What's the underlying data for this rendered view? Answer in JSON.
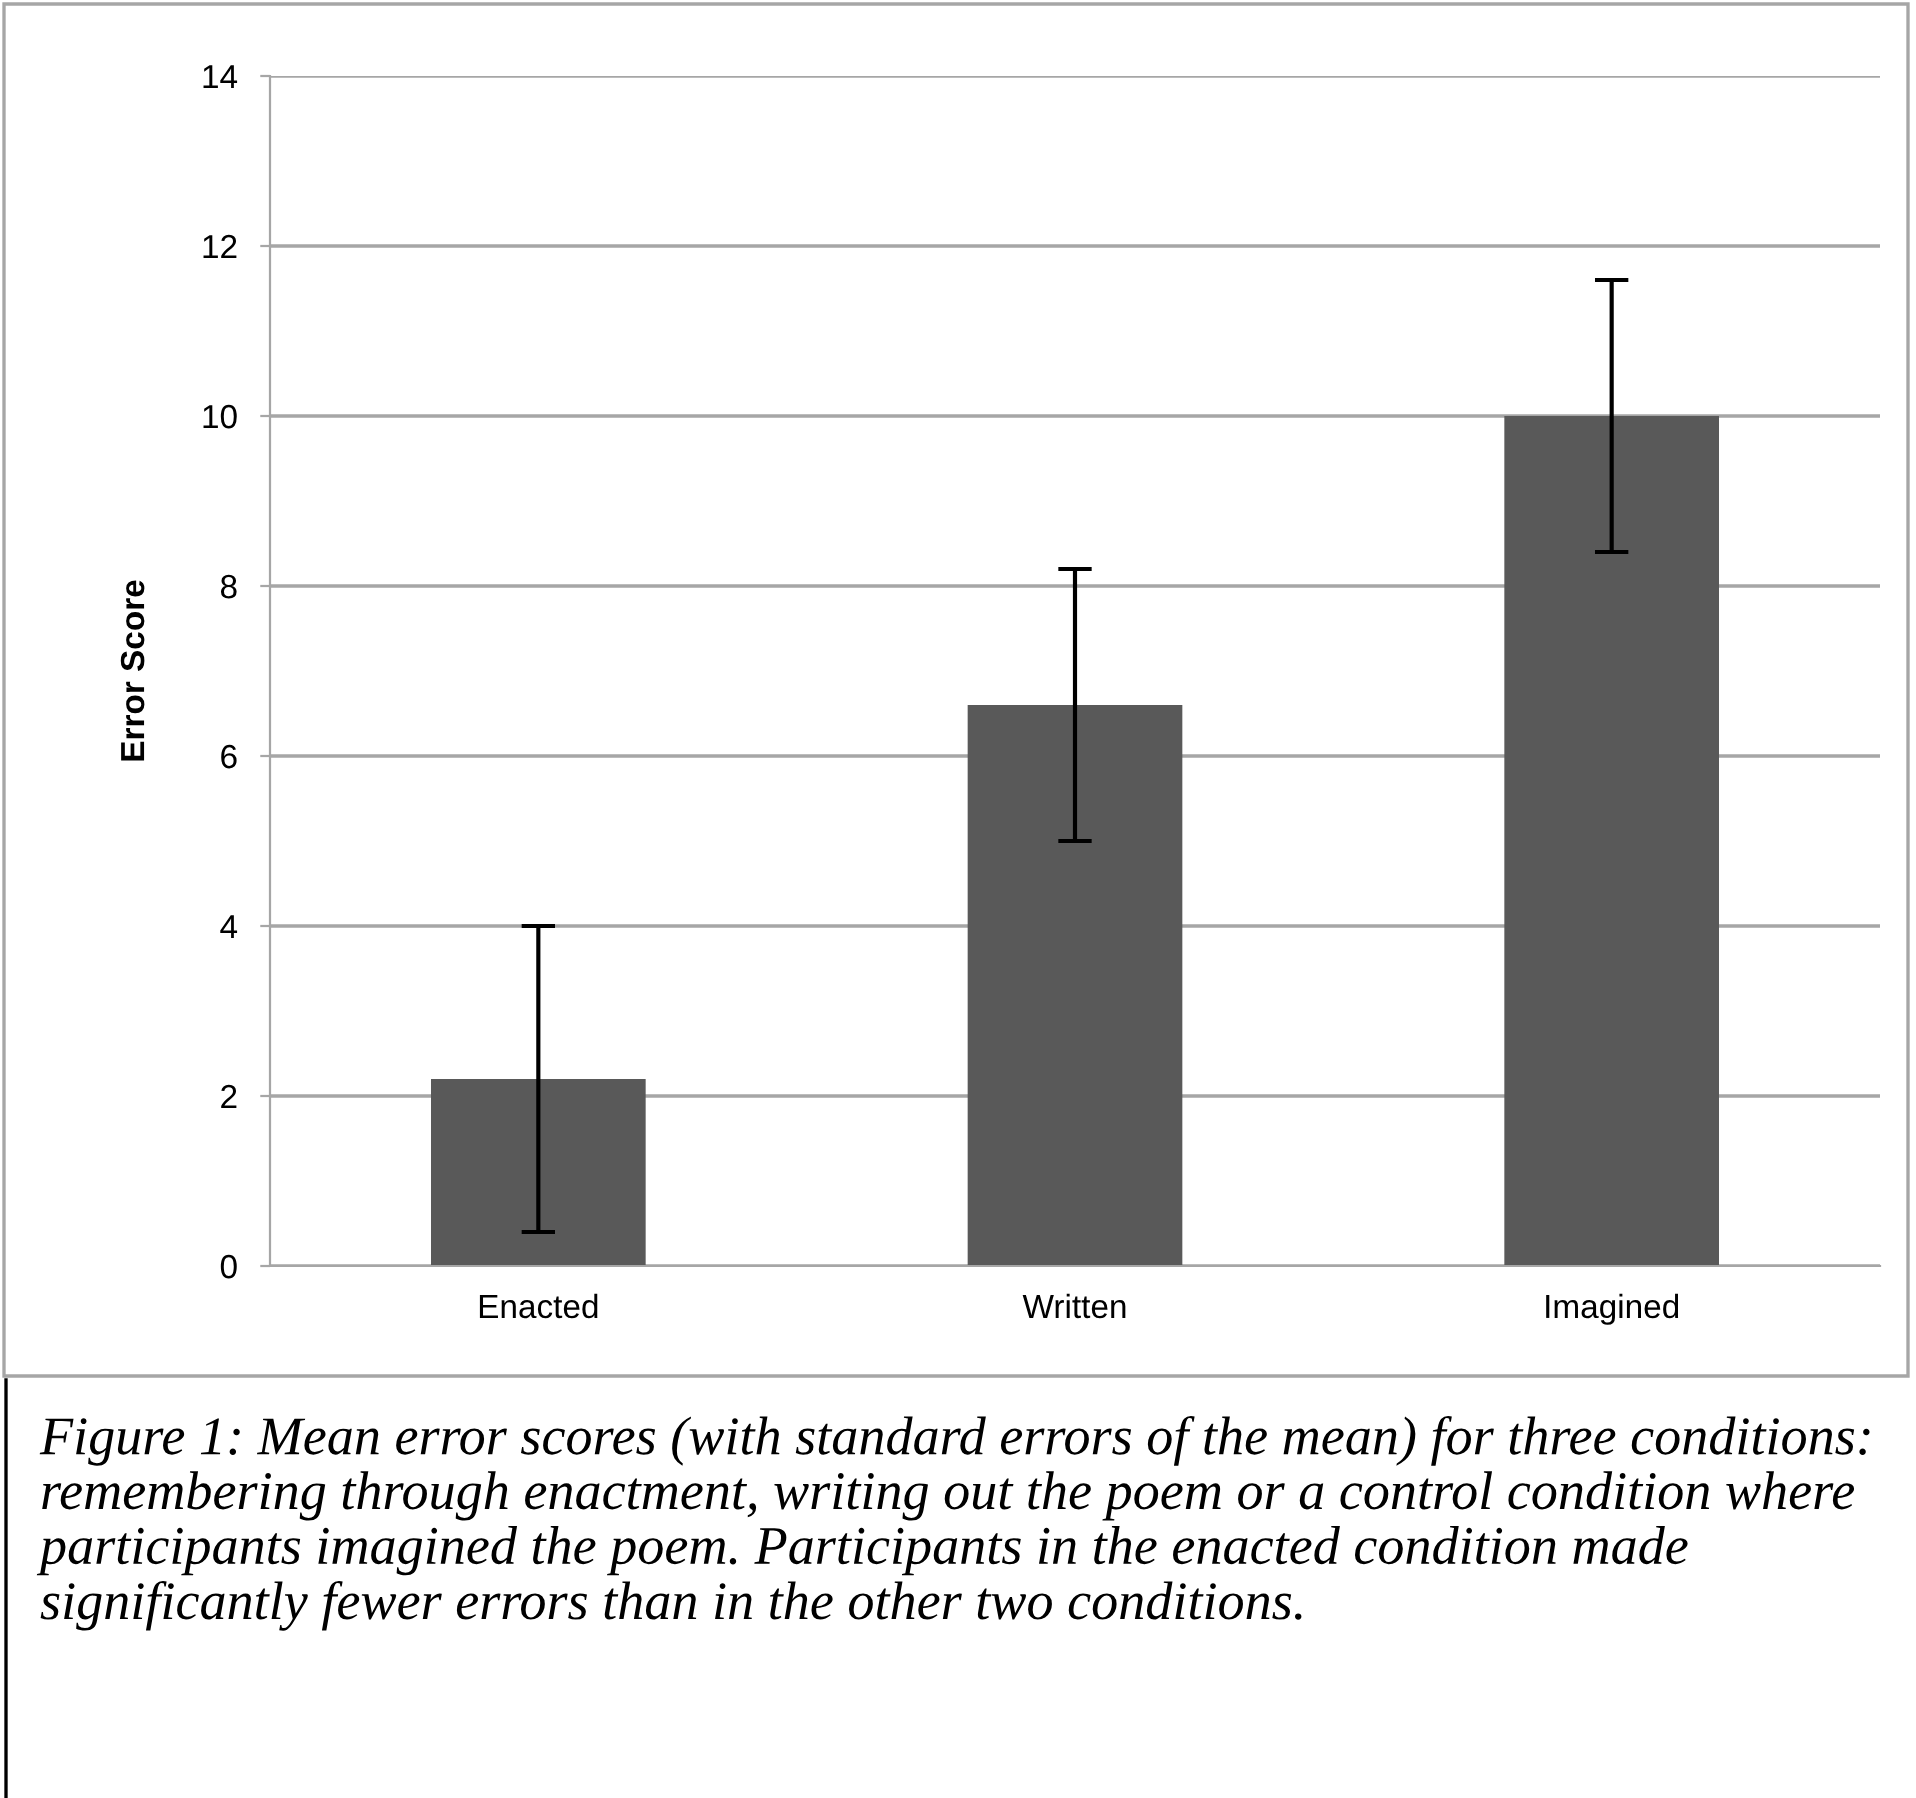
{
  "chart_data": {
    "type": "bar",
    "ylabel": "Error Score",
    "categories": [
      "Enacted",
      "Written",
      "Imagined"
    ],
    "values": [
      2.2,
      6.6,
      10
    ],
    "errors": [
      1.8,
      1.6,
      1.6
    ],
    "color": "#595959",
    "ylim": [
      0,
      14
    ],
    "yticks": [
      0,
      2,
      4,
      6,
      8,
      10,
      12,
      14
    ],
    "grid": "y",
    "annotations": [
      "Figure 1: Mean error scores (with standard errors of the mean) for three conditions: remembering through enactment, writing out the poem or a control condition where participants imagined the poem. Participants in the enacted condition made significantly fewer errors than in the other two conditions."
    ]
  }
}
